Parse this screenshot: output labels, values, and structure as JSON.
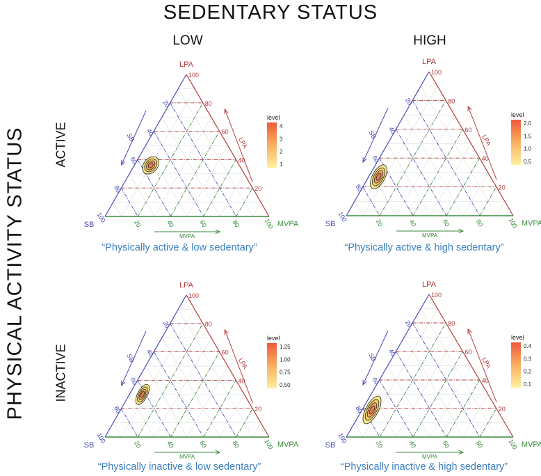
{
  "title": "SEDENTARY STATUS",
  "row_axis_title": "PHYSICAL ACTIVITY STATUS",
  "columns": [
    "LOW",
    "HIGH"
  ],
  "rows": [
    "ACTIVE",
    "INACTIVE"
  ],
  "axes": {
    "sb": "SB",
    "lpa": "LPA",
    "mvpa": "MVPA",
    "ticks": [
      "20",
      "40",
      "60",
      "80",
      "100"
    ]
  },
  "colors": {
    "sb": "#4a4ab8",
    "lpa": "#b23a3a",
    "mvpa": "#3a8a3a",
    "caption": "#3a7fc0"
  },
  "chart_data": [
    {
      "type": "ternary-density",
      "caption": "“Physically active & low sedentary”",
      "legend_title": "level",
      "legend_ticks": [
        "4",
        "3",
        "2",
        "1"
      ],
      "density_peak": {
        "SB": 54,
        "LPA": 36,
        "MVPA": 10
      }
    },
    {
      "type": "ternary-density",
      "caption": "“Physically active & high sedentary”",
      "legend_title": "level",
      "legend_ticks": [
        "2.0",
        "1.5",
        "1.0",
        "0.5"
      ],
      "density_peak": {
        "SB": 67,
        "LPA": 27,
        "MVPA": 6
      }
    },
    {
      "type": "ternary-density",
      "caption": "“Physically inactive & low sedentary”",
      "legend_title": "level",
      "legend_ticks": [
        "1.25",
        "1.00",
        "0.75",
        "0.50"
      ],
      "density_peak": {
        "SB": 62,
        "LPA": 30,
        "MVPA": 8
      }
    },
    {
      "type": "ternary-density",
      "caption": "“Physically inactive & high sedentary”",
      "legend_title": "level",
      "legend_ticks": [
        "0.4",
        "0.3",
        "0.2",
        "0.1"
      ],
      "density_peak": {
        "SB": 75,
        "LPA": 19,
        "MVPA": 6
      }
    }
  ]
}
